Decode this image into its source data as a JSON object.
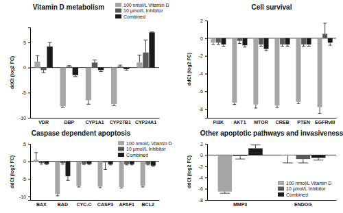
{
  "chart_data": [
    {
      "type": "bar",
      "title": "Vitamin D metabolism",
      "y_label": "ddCt (log2 FC)",
      "categories": [
        "VDR",
        "DBP",
        "CYP1A1",
        "CYP27B1",
        "CYP24A1"
      ],
      "ylim": [
        -10,
        8
      ],
      "yticks": [
        -10,
        -5,
        0,
        5
      ],
      "legend": "upper right",
      "series": [
        {
          "name": "100 nmol/L Vitamin D",
          "color": "#a6a6a6",
          "values": [
            1.2,
            -7.7,
            -6.5,
            -7.3,
            1.0
          ],
          "errors": [
            1.2,
            0.2,
            0.8,
            0.3,
            1.5
          ]
        },
        {
          "name": "10 µmol/L Inhibitor",
          "color": "#595959",
          "values": [
            -0.5,
            0.2,
            1.0,
            0.2,
            3.0
          ],
          "errors": [
            0.5,
            0.2,
            0.5,
            0.3,
            2.5
          ]
        },
        {
          "name": "Combined",
          "color": "#1a1a1a",
          "values": [
            4.2,
            -1.5,
            -0.5,
            -0.3,
            7.0
          ],
          "errors": [
            0.8,
            0.3,
            0.3,
            0.2,
            0.1
          ]
        }
      ]
    },
    {
      "type": "bar",
      "title": "Cell survival",
      "y_label": "ddCt (log2 FC)",
      "categories": [
        "PI3K",
        "AKT1",
        "MTOR",
        "CREB",
        "PTEN",
        "EGFRvIII"
      ],
      "ylim": [
        -9,
        2
      ],
      "yticks": [
        -8,
        -6,
        -4,
        -2,
        0,
        2
      ],
      "series": [
        {
          "color": "#a6a6a6",
          "values": [
            -0.5,
            -7.3,
            -7.5,
            -7.6,
            -7.2,
            -7.8
          ],
          "errors": [
            0.2,
            0.2,
            0.4,
            0.2,
            0.2,
            0.7
          ]
        },
        {
          "color": "#595959",
          "values": [
            -0.5,
            -0.3,
            -0.7,
            -0.7,
            -0.7,
            0.5
          ],
          "errors": [
            0.2,
            0.3,
            0.2,
            0.2,
            0.2,
            1.2
          ]
        },
        {
          "color": "#1a1a1a",
          "values": [
            -0.7,
            -0.8,
            -1.2,
            -0.7,
            -0.7,
            -0.5
          ],
          "errors": [
            0.2,
            0.2,
            0.2,
            0.2,
            0.2,
            0.3
          ]
        }
      ]
    },
    {
      "type": "bar",
      "title": "Caspase dependent apoptosis",
      "y_label": "ddCt (log2 FC)",
      "categories": [
        "BAX",
        "BAD",
        "CYC-C",
        "CASP3",
        "APAF1",
        "BCL2"
      ],
      "ylim": [
        -11,
        5
      ],
      "yticks": [
        -10,
        -5,
        0,
        5
      ],
      "legend": "upper right",
      "series": [
        {
          "name": "100 nmol/L Vitamin D",
          "color": "#a6a6a6",
          "values": [
            0.5,
            -9.3,
            -7.0,
            -7.2,
            -7.3,
            -7.0
          ],
          "errors": [
            2.0,
            0.5,
            0.3,
            0.3,
            0.3,
            0.3
          ]
        },
        {
          "name": "10 µmol/L Inhibitor",
          "color": "#595959",
          "values": [
            -0.5,
            -0.5,
            -0.7,
            -0.3,
            -0.8,
            -0.8
          ],
          "errors": [
            0.3,
            0.3,
            0.2,
            2.0,
            0.2,
            0.2
          ]
        },
        {
          "name": "Combined",
          "color": "#1a1a1a",
          "values": [
            -0.7,
            -4.2,
            -0.7,
            -0.8,
            -0.8,
            -1.2
          ],
          "errors": [
            0.2,
            1.2,
            0.2,
            0.2,
            0.2,
            0.2
          ]
        }
      ]
    },
    {
      "type": "bar",
      "title": "Other apoptotic pathways and invasiveness",
      "y_label": "ddCt (log2 FC)",
      "categories": [
        "MMP3",
        "ENDOG"
      ],
      "ylim": [
        -8,
        2
      ],
      "yticks": [
        -8,
        -6,
        -4,
        -2,
        0,
        2
      ],
      "legend": "lower right",
      "series": [
        {
          "name": "100 nmol/L Vitamin D",
          "color": "#a6a6a6",
          "values": [
            -6.5,
            -0.1
          ],
          "errors": [
            0.3,
            1.3
          ]
        },
        {
          "name": "10 µmol/L Inhibitor",
          "color": "#595959",
          "values": [
            -0.2,
            -0.7
          ],
          "errors": [
            0.5,
            0.7
          ]
        },
        {
          "name": "Combined",
          "color": "#1a1a1a",
          "values": [
            1.2,
            -0.5
          ],
          "errors": [
            0.6,
            0.4
          ]
        }
      ]
    }
  ]
}
